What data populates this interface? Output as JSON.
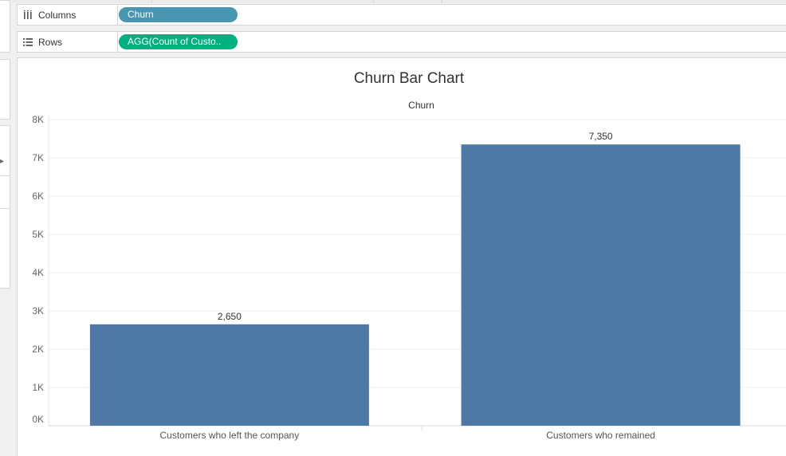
{
  "shelves": {
    "columns": {
      "label": "Columns",
      "pill": "Churn",
      "pill_color": "#4996b2",
      "icon": "columns-icon"
    },
    "rows": {
      "label": "Rows",
      "pill": "AGG(Count of Custo..",
      "pill_color": "#00b180",
      "icon": "rows-icon"
    }
  },
  "colors": {
    "bar": "#4e79a7",
    "gridline": "#ececec",
    "background": "#ffffff"
  },
  "chart_data": {
    "type": "bar",
    "title": "Churn Bar Chart",
    "subtitle": "Churn",
    "categories": [
      "Customers who left the company",
      "Customers who remained"
    ],
    "values": [
      2650,
      7350
    ],
    "value_labels": [
      "2,650",
      "7,350"
    ],
    "ylim": [
      0,
      8000
    ],
    "yticks": [
      0,
      1000,
      2000,
      3000,
      4000,
      5000,
      6000,
      7000,
      8000
    ],
    "ytick_labels": [
      "0K",
      "1K",
      "2K",
      "3K",
      "4K",
      "5K",
      "6K",
      "7K",
      "8K"
    ],
    "grid": true
  }
}
